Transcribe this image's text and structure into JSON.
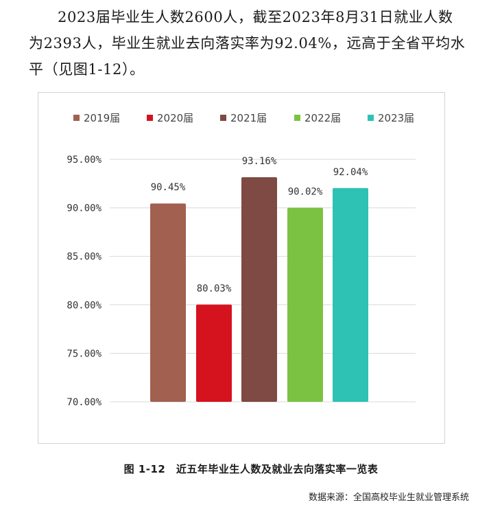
{
  "paragraph": {
    "text": "2023届毕业生人数2600人，截至2023年8月31日就业人数为2393人，毕业生就业去向落实率为92.04%，远高于全省平均水平（见图1-12）。"
  },
  "chart_data": {
    "type": "bar",
    "categories": [
      "2019届",
      "2020届",
      "2021届",
      "2022届",
      "2023届"
    ],
    "values": [
      90.45,
      80.03,
      93.16,
      90.02,
      92.04
    ],
    "data_labels": [
      "90.45%",
      "80.03%",
      "93.16%",
      "90.02%",
      "92.04%"
    ],
    "colors": [
      "#a16050",
      "#d4131f",
      "#7e4a43",
      "#7cc242",
      "#2ec2b4"
    ],
    "ylim": [
      70,
      95
    ],
    "yticks": [
      95,
      90,
      85,
      80,
      75,
      70
    ],
    "ytick_labels": [
      "95.00%",
      "90.00%",
      "85.00%",
      "80.00%",
      "75.00%",
      "70.00%"
    ],
    "legend": [
      "2019届",
      "2020届",
      "2021届",
      "2022届",
      "2023届"
    ],
    "legend_position": "top",
    "grid": true,
    "title": "",
    "xlabel": "",
    "ylabel": ""
  },
  "caption": "图 1-12　近五年毕业生人数及就业去向落实率一览表",
  "source": "数据来源：全国高校毕业生就业管理系统"
}
